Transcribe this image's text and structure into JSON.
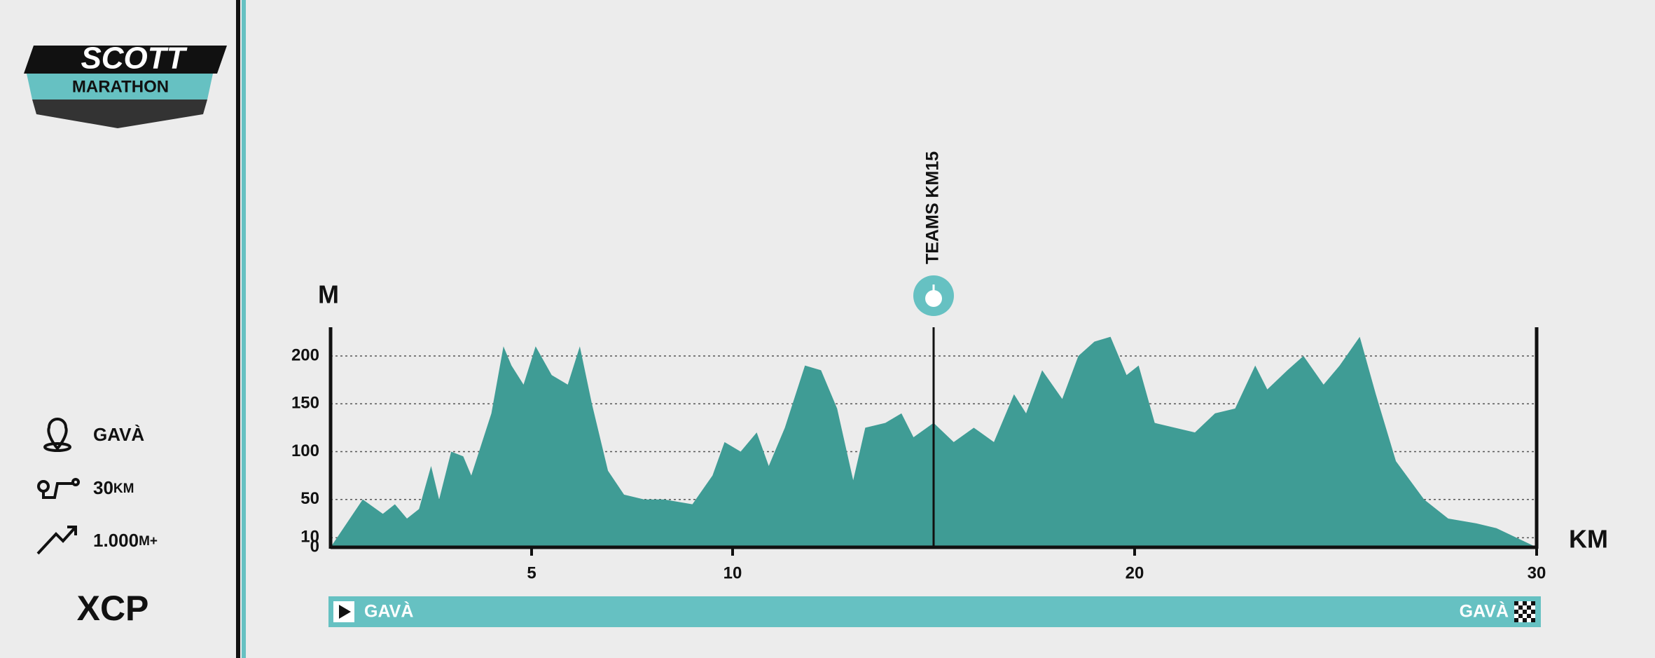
{
  "logo": {
    "brand": "SCOTT",
    "event": "MARATHON"
  },
  "info": {
    "location": "GAVÀ",
    "distance": "30",
    "distance_unit": "KM",
    "elevation_gain": "1.000",
    "elevation_unit": "M+",
    "category": "XCP"
  },
  "chart_data": {
    "type": "area",
    "x": [
      0,
      0.8,
      1.3,
      1.6,
      1.9,
      2.2,
      2.5,
      2.7,
      3.0,
      3.3,
      3.5,
      4.0,
      4.3,
      4.5,
      4.8,
      5.1,
      5.5,
      5.9,
      6.2,
      6.5,
      6.9,
      7.3,
      7.8,
      8.3,
      9.0,
      9.5,
      9.8,
      10.2,
      10.6,
      10.9,
      11.3,
      11.8,
      12.2,
      12.6,
      13.0,
      13.3,
      13.8,
      14.2,
      14.5,
      15.0,
      15.5,
      16.0,
      16.5,
      17.0,
      17.3,
      17.7,
      18.2,
      18.6,
      19.0,
      19.4,
      19.8,
      20.1,
      20.5,
      21.0,
      21.5,
      22.0,
      22.5,
      23.0,
      23.3,
      23.8,
      24.2,
      24.7,
      25.1,
      25.6,
      26.0,
      26.5,
      27.2,
      27.8,
      28.5,
      29.0,
      29.5,
      30
    ],
    "values": [
      0,
      50,
      35,
      45,
      30,
      40,
      85,
      50,
      100,
      95,
      75,
      140,
      210,
      190,
      170,
      210,
      180,
      170,
      210,
      150,
      80,
      55,
      50,
      50,
      45,
      75,
      110,
      100,
      120,
      85,
      125,
      190,
      185,
      145,
      70,
      125,
      130,
      140,
      115,
      130,
      110,
      125,
      110,
      160,
      140,
      185,
      155,
      200,
      215,
      220,
      180,
      190,
      130,
      125,
      120,
      140,
      145,
      190,
      165,
      185,
      200,
      170,
      190,
      220,
      160,
      90,
      50,
      30,
      25,
      20,
      10,
      0
    ],
    "color": "#3f9c95",
    "xlim": [
      0,
      30
    ],
    "xticks": [
      5,
      10,
      20,
      30
    ],
    "ylim": [
      0,
      230
    ],
    "yticks": [
      0,
      10,
      50,
      100,
      150,
      200
    ],
    "grid": true,
    "x_label": "KM",
    "y_label": "M",
    "annotations": [
      {
        "x": 15,
        "label": "TEAMS KM15"
      }
    ],
    "route": {
      "start": "GAVÀ",
      "finish": "GAVÀ"
    }
  }
}
